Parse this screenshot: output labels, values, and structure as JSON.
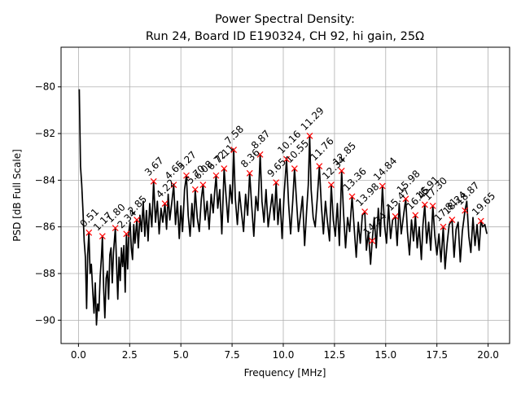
{
  "chart_data": {
    "type": "line",
    "title": "Power Spectral Density:",
    "subtitle": "Run 24, Board ID E190324, CH 92, hi gain, 25Ω",
    "xlabel": "Frequency [MHz]",
    "ylabel": "PSD [dB Full Scale]",
    "xlim": [
      -0.85,
      21.05
    ],
    "ylim": [
      -91.0,
      -78.3
    ],
    "xticks": [
      0.0,
      2.5,
      5.0,
      7.5,
      10.0,
      12.5,
      15.0,
      17.5,
      20.0
    ],
    "xtick_labels": [
      "0.0",
      "2.5",
      "5.0",
      "7.5",
      "10.0",
      "12.5",
      "15.0",
      "17.5",
      "20.0"
    ],
    "yticks": [
      -90,
      -88,
      -86,
      -84,
      -82,
      -80
    ],
    "ytick_labels": [
      "−90",
      "−88",
      "−86",
      "−84",
      "−82",
      "−80"
    ],
    "grid": true,
    "line_color": "#000000",
    "marker_color": "#ff0000",
    "series": [
      {
        "name": "PSD",
        "x": [
          0.04,
          0.1,
          0.16,
          0.22,
          0.28,
          0.34,
          0.4,
          0.45,
          0.51,
          0.57,
          0.63,
          0.7,
          0.76,
          0.82,
          0.88,
          0.94,
          1.0,
          1.06,
          1.12,
          1.17,
          1.23,
          1.29,
          1.35,
          1.41,
          1.47,
          1.53,
          1.59,
          1.65,
          1.71,
          1.8,
          1.86,
          1.92,
          1.98,
          2.04,
          2.1,
          2.16,
          2.22,
          2.28,
          2.34,
          2.4,
          2.46,
          2.52,
          2.58,
          2.64,
          2.7,
          2.76,
          2.85,
          2.92,
          3.0,
          3.08,
          3.16,
          3.24,
          3.32,
          3.4,
          3.48,
          3.58,
          3.67,
          3.76,
          3.85,
          3.94,
          4.03,
          4.12,
          4.22,
          4.3,
          4.38,
          4.46,
          4.55,
          4.65,
          4.74,
          4.83,
          4.92,
          5.0,
          5.08,
          5.18,
          5.27,
          5.36,
          5.45,
          5.54,
          5.62,
          5.7,
          5.8,
          5.9,
          6.0,
          6.08,
          6.18,
          6.28,
          6.38,
          6.48,
          6.58,
          6.65,
          6.72,
          6.8,
          6.9,
          7.0,
          7.11,
          7.2,
          7.3,
          7.4,
          7.5,
          7.58,
          7.66,
          7.76,
          7.86,
          7.96,
          8.06,
          8.16,
          8.26,
          8.36,
          8.46,
          8.56,
          8.66,
          8.76,
          8.87,
          8.96,
          9.06,
          9.16,
          9.26,
          9.36,
          9.46,
          9.56,
          9.65,
          9.74,
          9.84,
          9.94,
          10.04,
          10.16,
          10.26,
          10.36,
          10.46,
          10.55,
          10.64,
          10.74,
          10.84,
          10.94,
          11.04,
          11.14,
          11.22,
          11.29,
          11.36,
          11.46,
          11.56,
          11.66,
          11.76,
          11.86,
          11.96,
          12.06,
          12.16,
          12.26,
          12.34,
          12.44,
          12.54,
          12.64,
          12.74,
          12.85,
          12.94,
          13.04,
          13.14,
          13.24,
          13.36,
          13.46,
          13.56,
          13.66,
          13.76,
          13.86,
          13.98,
          14.06,
          14.16,
          14.26,
          14.34,
          14.44,
          14.54,
          14.64,
          14.74,
          14.84,
          14.94,
          15.04,
          15.14,
          15.24,
          15.34,
          15.47,
          15.56,
          15.66,
          15.76,
          15.86,
          15.98,
          16.06,
          16.16,
          16.26,
          16.36,
          16.45,
          16.54,
          16.64,
          16.74,
          16.82,
          16.91,
          17.0,
          17.1,
          17.2,
          17.3,
          17.4,
          17.5,
          17.6,
          17.7,
          17.81,
          17.9,
          18.0,
          18.1,
          18.24,
          18.34,
          18.44,
          18.54,
          18.64,
          18.74,
          18.87,
          18.96,
          19.06,
          19.16,
          19.26,
          19.36,
          19.46,
          19.56,
          19.65,
          19.74,
          19.84,
          19.94
        ],
        "y": [
          -80.1,
          -83.4,
          -84.2,
          -85.3,
          -86.6,
          -87.3,
          -89.5,
          -87.2,
          -86.25,
          -88.0,
          -87.6,
          -88.8,
          -89.7,
          -88.4,
          -90.2,
          -89.3,
          -89.6,
          -88.1,
          -87.3,
          -86.4,
          -88.6,
          -89.9,
          -88.2,
          -87.9,
          -89.1,
          -87.2,
          -86.9,
          -88.4,
          -87.1,
          -86.05,
          -87.6,
          -89.1,
          -87.3,
          -88.3,
          -86.9,
          -87.7,
          -86.8,
          -88.8,
          -86.3,
          -87.8,
          -86.2,
          -85.8,
          -86.9,
          -87.4,
          -85.9,
          -86.7,
          -85.7,
          -86.9,
          -85.5,
          -86.2,
          -84.9,
          -86.4,
          -85.3,
          -86.6,
          -85.0,
          -86.0,
          -84.05,
          -85.8,
          -84.9,
          -86.3,
          -85.2,
          -85.8,
          -85.0,
          -86.1,
          -84.6,
          -85.7,
          -85.0,
          -84.2,
          -85.9,
          -84.9,
          -86.5,
          -85.1,
          -86.2,
          -84.4,
          -83.8,
          -85.5,
          -86.4,
          -85.0,
          -86.0,
          -84.4,
          -85.6,
          -86.2,
          -84.8,
          -84.2,
          -85.7,
          -84.9,
          -86.1,
          -84.6,
          -85.4,
          -84.5,
          -83.8,
          -85.2,
          -84.4,
          -86.3,
          -83.5,
          -84.6,
          -85.8,
          -84.2,
          -85.0,
          -82.7,
          -84.8,
          -85.9,
          -84.5,
          -85.4,
          -86.2,
          -84.6,
          -85.5,
          -83.7,
          -85.1,
          -86.4,
          -84.7,
          -85.3,
          -82.9,
          -84.9,
          -85.8,
          -84.4,
          -86.0,
          -85.3,
          -84.6,
          -85.7,
          -84.1,
          -85.9,
          -84.8,
          -86.5,
          -84.6,
          -83.1,
          -85.0,
          -86.3,
          -84.9,
          -83.5,
          -84.8,
          -86.2,
          -85.5,
          -84.7,
          -86.8,
          -85.3,
          -84.2,
          -82.1,
          -84.4,
          -85.6,
          -86.0,
          -84.8,
          -83.4,
          -85.1,
          -86.3,
          -84.9,
          -85.8,
          -86.6,
          -84.2,
          -85.7,
          -86.4,
          -85.0,
          -86.8,
          -83.6,
          -85.4,
          -86.9,
          -85.6,
          -86.2,
          -84.7,
          -86.0,
          -87.3,
          -85.8,
          -86.7,
          -85.5,
          -85.35,
          -87.0,
          -86.2,
          -87.6,
          -86.6,
          -85.6,
          -86.9,
          -85.2,
          -86.4,
          -84.25,
          -85.9,
          -86.7,
          -85.1,
          -86.5,
          -85.7,
          -85.55,
          -86.8,
          -85.0,
          -86.3,
          -85.6,
          -84.8,
          -86.2,
          -87.2,
          -85.7,
          -86.6,
          -85.5,
          -86.9,
          -86.0,
          -87.4,
          -85.9,
          -85.05,
          -86.7,
          -85.8,
          -87.0,
          -85.1,
          -86.4,
          -87.2,
          -86.3,
          -87.5,
          -86.0,
          -87.8,
          -86.7,
          -85.9,
          -85.7,
          -87.3,
          -86.1,
          -85.8,
          -87.5,
          -86.2,
          -85.3,
          -84.9,
          -86.4,
          -87.1,
          -85.6,
          -86.8,
          -85.9,
          -87.0,
          -85.75,
          -86.0,
          -85.9,
          -86.3
        ]
      }
    ],
    "peaks": [
      {
        "label": "0.51",
        "x": 0.51,
        "y": -86.25
      },
      {
        "label": "1.17",
        "x": 1.17,
        "y": -86.4
      },
      {
        "label": "1.80",
        "x": 1.8,
        "y": -86.05
      },
      {
        "label": "2.34",
        "x": 2.34,
        "y": -86.3
      },
      {
        "label": "2.85",
        "x": 2.85,
        "y": -85.7
      },
      {
        "label": "3.67",
        "x": 3.67,
        "y": -84.05
      },
      {
        "label": "4.22",
        "x": 4.22,
        "y": -85.0
      },
      {
        "label": "4.65",
        "x": 4.65,
        "y": -84.2
      },
      {
        "label": "5.27",
        "x": 5.27,
        "y": -83.8
      },
      {
        "label": "5.70",
        "x": 5.7,
        "y": -84.4
      },
      {
        "label": "6.08",
        "x": 6.08,
        "y": -84.2
      },
      {
        "label": "6.72",
        "x": 6.72,
        "y": -83.8
      },
      {
        "label": "7.11",
        "x": 7.11,
        "y": -83.5
      },
      {
        "label": "7.58",
        "x": 7.58,
        "y": -82.7
      },
      {
        "label": "8.36",
        "x": 8.36,
        "y": -83.7
      },
      {
        "label": "8.87",
        "x": 8.87,
        "y": -82.9
      },
      {
        "label": "9.65",
        "x": 9.65,
        "y": -84.1
      },
      {
        "label": "10.16",
        "x": 10.16,
        "y": -83.1
      },
      {
        "label": "10.55",
        "x": 10.55,
        "y": -83.5
      },
      {
        "label": "11.29",
        "x": 11.29,
        "y": -82.1
      },
      {
        "label": "11.76",
        "x": 11.76,
        "y": -83.4
      },
      {
        "label": "12.34",
        "x": 12.34,
        "y": -84.2
      },
      {
        "label": "12.85",
        "x": 12.85,
        "y": -83.6
      },
      {
        "label": "13.36",
        "x": 13.36,
        "y": -84.7
      },
      {
        "label": "13.98",
        "x": 13.98,
        "y": -85.35
      },
      {
        "label": "14.34",
        "x": 14.34,
        "y": -86.6
      },
      {
        "label": "14.84",
        "x": 14.84,
        "y": -84.25
      },
      {
        "label": "15.47",
        "x": 15.47,
        "y": -85.55
      },
      {
        "label": "15.98",
        "x": 15.98,
        "y": -84.8
      },
      {
        "label": "16.45",
        "x": 16.45,
        "y": -85.5
      },
      {
        "label": "16.91",
        "x": 16.91,
        "y": -85.05
      },
      {
        "label": "17.30",
        "x": 17.3,
        "y": -85.1
      },
      {
        "label": "17.81",
        "x": 17.81,
        "y": -86.0
      },
      {
        "label": "18.24",
        "x": 18.24,
        "y": -85.7
      },
      {
        "label": "18.87",
        "x": 18.87,
        "y": -85.3
      },
      {
        "label": "19.65",
        "x": 19.65,
        "y": -85.75
      }
    ]
  }
}
